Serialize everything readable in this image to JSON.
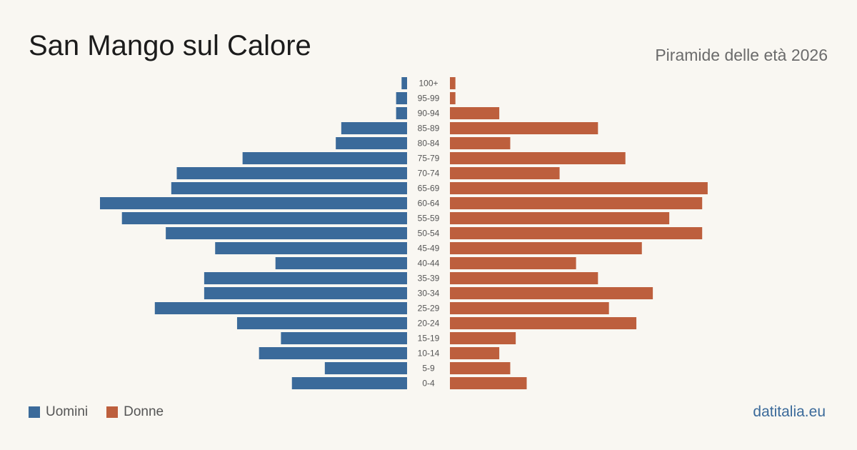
{
  "header": {
    "title": "San Mango sul Calore",
    "subtitle": "Piramide delle età 2026"
  },
  "footer": {
    "source": "datitalia.eu"
  },
  "colors": {
    "men": "#3b6a9a",
    "women": "#bd5f3d",
    "source": "#3b6a9a"
  },
  "chart_data": {
    "type": "bar",
    "orientation": "population-pyramid",
    "categories": [
      "100+",
      "95-99",
      "90-94",
      "85-89",
      "80-84",
      "75-79",
      "70-74",
      "65-69",
      "60-64",
      "55-59",
      "50-54",
      "45-49",
      "40-44",
      "35-39",
      "30-34",
      "25-29",
      "20-24",
      "15-19",
      "10-14",
      "5-9",
      "0-4"
    ],
    "series": [
      {
        "name": "Uomini",
        "values": [
          1,
          2,
          2,
          12,
          13,
          30,
          42,
          43,
          56,
          52,
          44,
          35,
          24,
          37,
          37,
          46,
          31,
          23,
          27,
          15,
          21
        ]
      },
      {
        "name": "Donne",
        "values": [
          1,
          1,
          9,
          27,
          11,
          32,
          20,
          47,
          46,
          40,
          46,
          35,
          23,
          27,
          37,
          29,
          34,
          12,
          9,
          11,
          14
        ]
      }
    ],
    "legend": {
      "position": "bottom-left"
    },
    "grid": false
  }
}
